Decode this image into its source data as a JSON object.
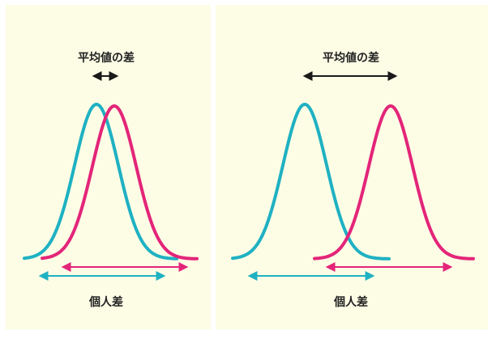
{
  "colors": {
    "series_a": "#1fb1c2",
    "series_b": "#e32579",
    "arrow_dark": "#1a1a1a",
    "background": "#fdfde6"
  },
  "left_panel": {
    "mean_diff_label": "平均値の差",
    "individual_diff_label": "個人差"
  },
  "right_panel": {
    "mean_diff_label": "平均値の差",
    "individual_diff_label": "個人差"
  }
}
